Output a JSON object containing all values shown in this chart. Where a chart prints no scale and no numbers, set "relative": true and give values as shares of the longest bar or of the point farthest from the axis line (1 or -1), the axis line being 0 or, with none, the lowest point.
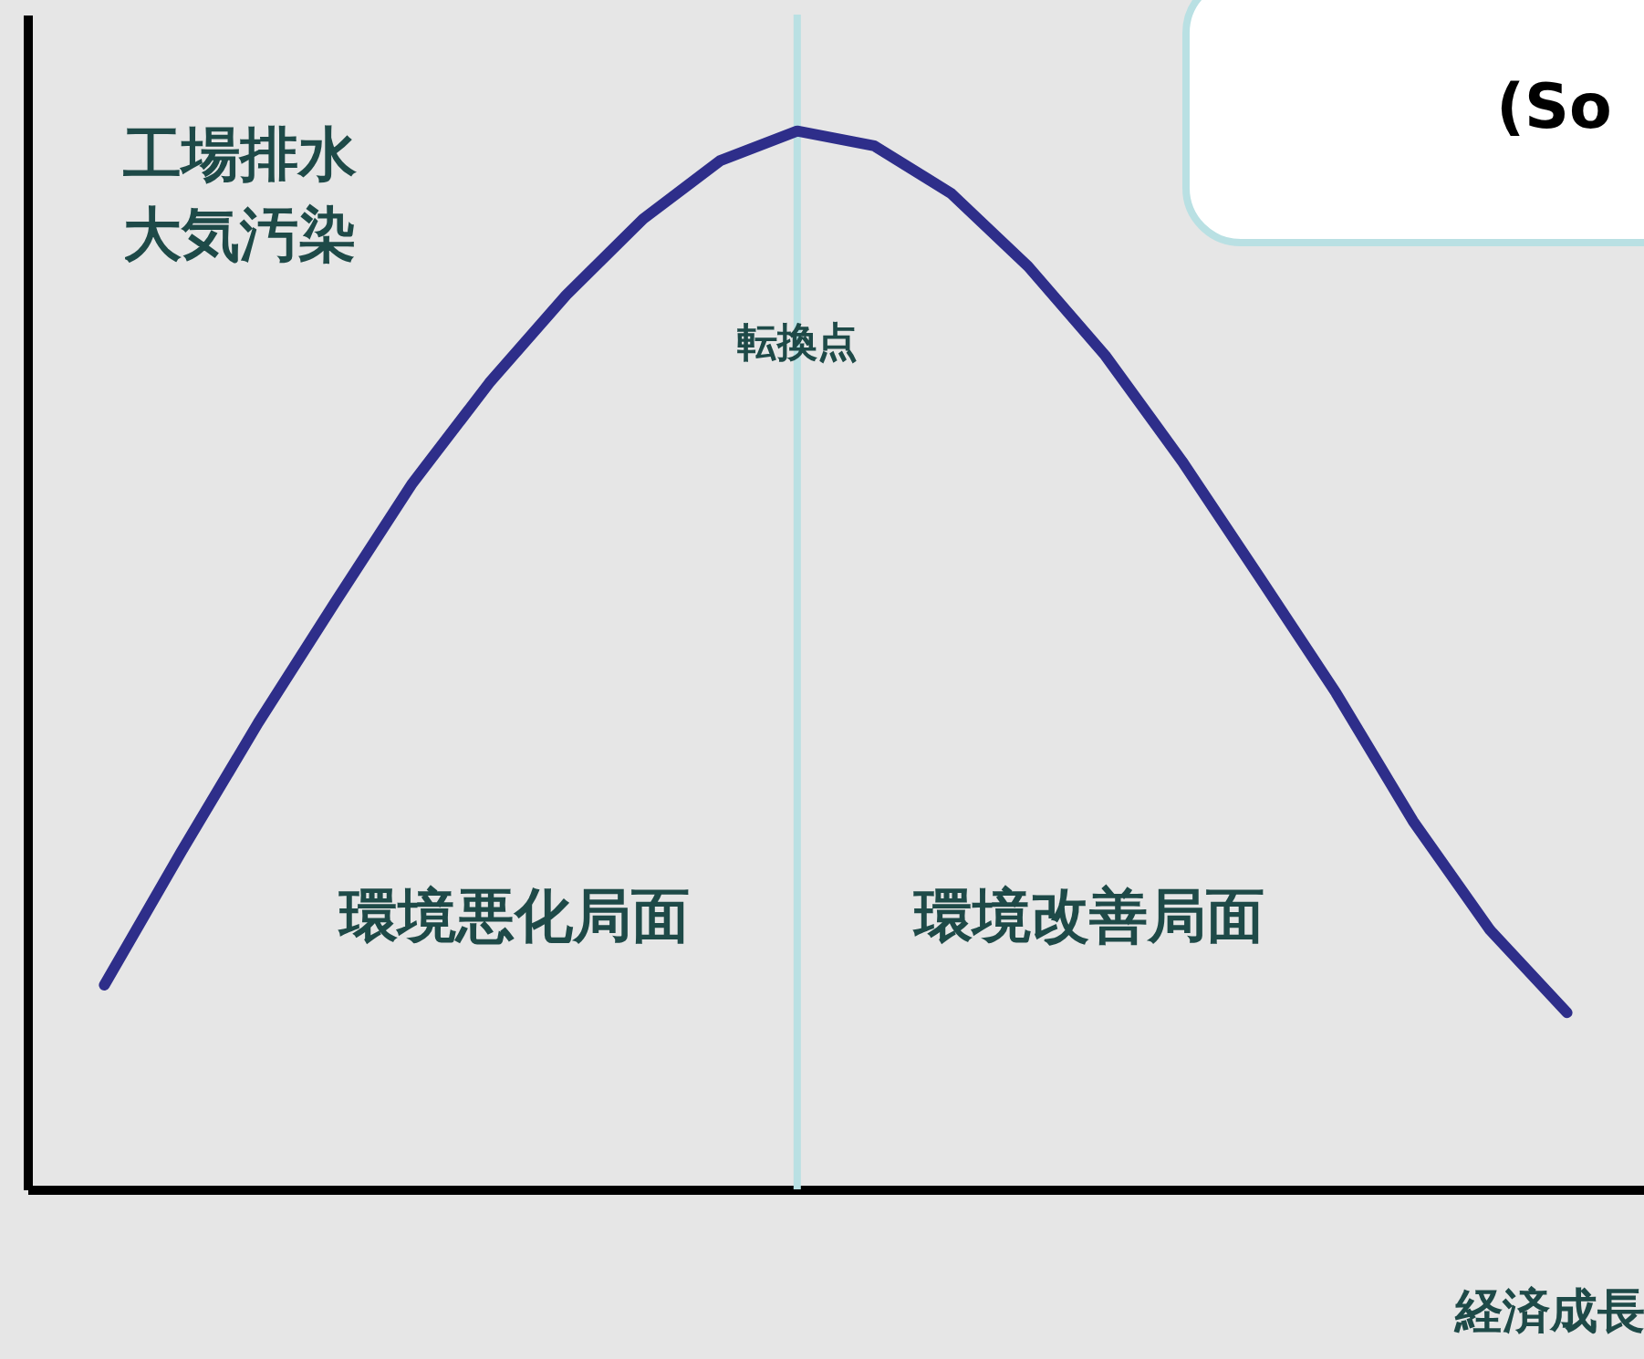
{
  "chart_data": {
    "type": "line",
    "relative": true,
    "ylabel": "工場排水大気汚染",
    "xlabel": "経済成長",
    "categories": [
      null,
      null,
      null,
      null,
      null,
      null,
      null,
      null,
      null,
      null,
      null,
      null,
      null,
      null,
      null,
      null,
      null,
      null,
      null,
      null
    ],
    "series": [
      {
        "color": "#2e2e8a",
        "values": [
          0.193,
          0.319,
          0.441,
          0.555,
          0.667,
          0.762,
          0.845,
          0.917,
          0.972,
          1.0,
          0.986,
          0.941,
          0.872,
          0.788,
          0.688,
          0.579,
          0.469,
          0.348,
          0.245,
          0.167
        ]
      }
    ],
    "ref_lines": [
      {
        "axis": "x",
        "label": "転換点",
        "color": "#b9e0e3"
      }
    ],
    "annotations": [
      "環境悪化局面",
      "環境改善局面",
      "(So"
    ]
  }
}
